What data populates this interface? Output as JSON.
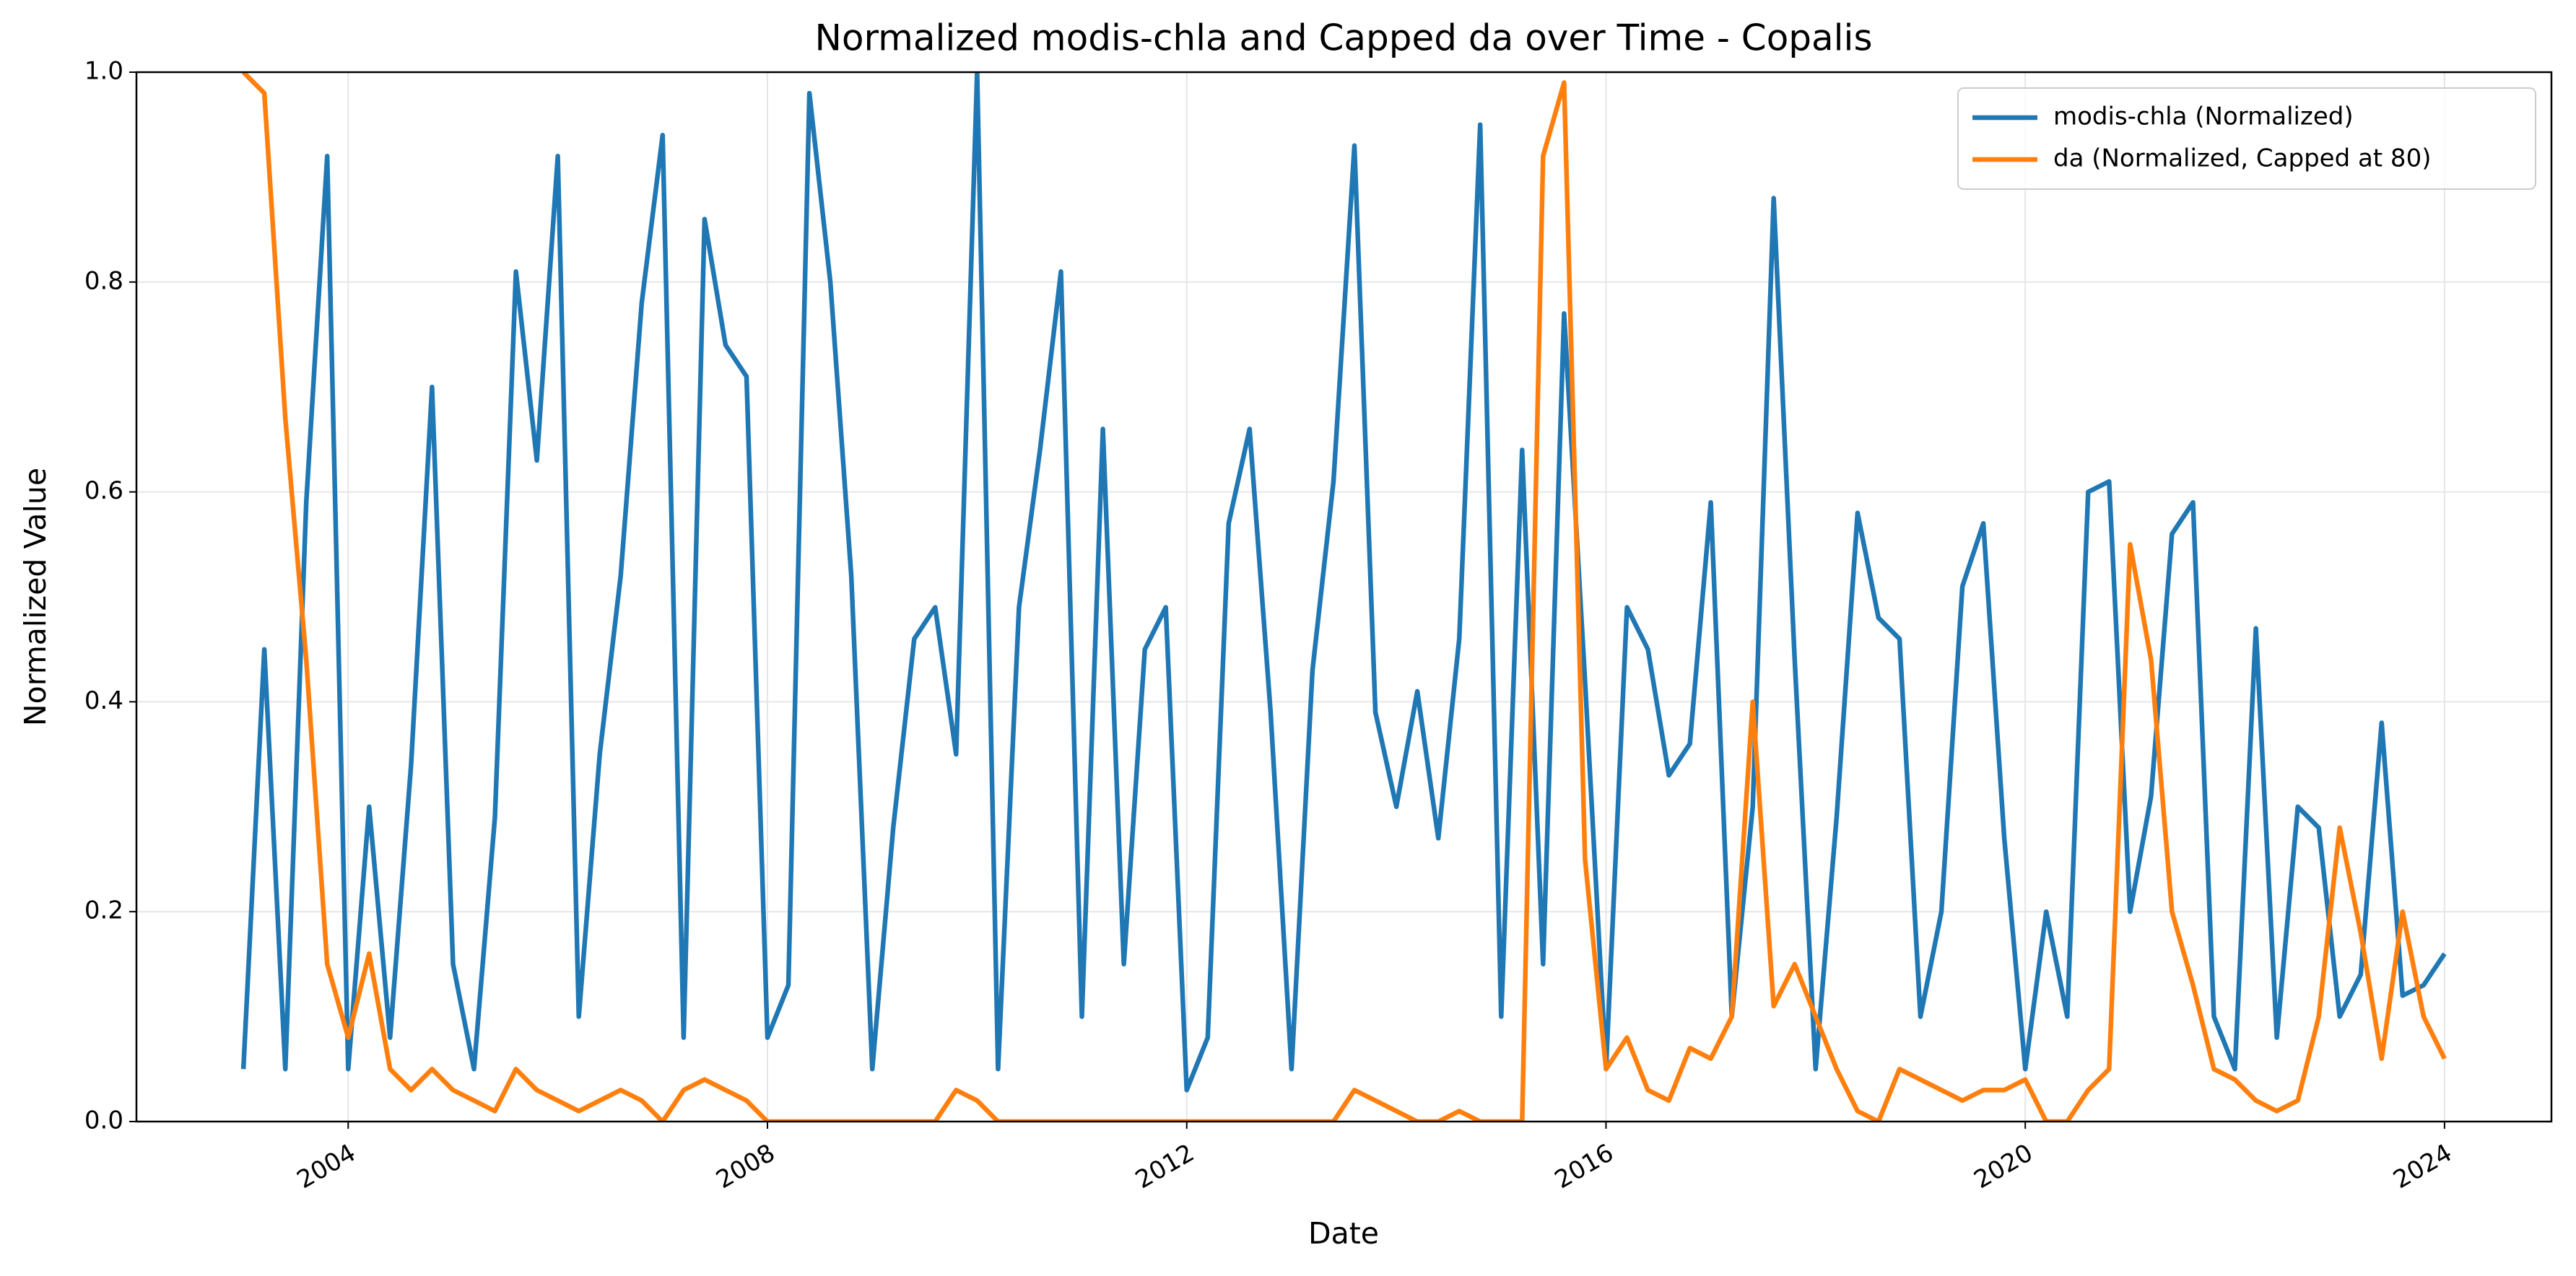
{
  "chart_data": {
    "type": "line",
    "title": "Normalized modis-chla and Capped da over Time - Copalis",
    "xlabel": "Date",
    "ylabel": "Normalized Value",
    "grid": true,
    "legend": "upper right",
    "x": [
      2003.0,
      2003.2,
      2003.4,
      2003.6,
      2003.8,
      2004.0,
      2004.2,
      2004.4,
      2004.6,
      2004.8,
      2005.0,
      2005.2,
      2005.4,
      2005.6,
      2005.8,
      2006.0,
      2006.2,
      2006.4,
      2006.6,
      2006.8,
      2007.0,
      2007.2,
      2007.4,
      2007.6,
      2007.8,
      2008.0,
      2008.2,
      2008.4,
      2008.6,
      2008.8,
      2009.0,
      2009.2,
      2009.4,
      2009.6,
      2009.8,
      2010.0,
      2010.2,
      2010.4,
      2010.6,
      2010.8,
      2011.0,
      2011.2,
      2011.4,
      2011.6,
      2011.8,
      2012.0,
      2012.2,
      2012.4,
      2012.6,
      2012.8,
      2013.0,
      2013.2,
      2013.4,
      2013.6,
      2013.8,
      2014.0,
      2014.2,
      2014.4,
      2014.6,
      2014.8,
      2015.0,
      2015.2,
      2015.4,
      2015.6,
      2015.8,
      2016.0,
      2016.2,
      2016.4,
      2016.6,
      2016.8,
      2017.0,
      2017.2,
      2017.4,
      2017.6,
      2017.8,
      2018.0,
      2018.2,
      2018.4,
      2018.6,
      2018.8,
      2019.0,
      2019.2,
      2019.4,
      2019.6,
      2019.8,
      2020.0,
      2020.2,
      2020.4,
      2020.6,
      2020.8,
      2021.0,
      2021.2,
      2021.4,
      2021.6,
      2021.8,
      2022.0,
      2022.2,
      2022.4,
      2022.6,
      2022.8,
      2023.0,
      2023.2,
      2023.4,
      2023.6,
      2023.8,
      2024.0
    ],
    "series": [
      {
        "name": "modis-chla (Normalized)",
        "color": "#1f77b4",
        "values": [
          0.05,
          0.45,
          0.05,
          0.59,
          0.92,
          0.05,
          0.3,
          0.08,
          0.34,
          0.7,
          0.15,
          0.05,
          0.29,
          0.81,
          0.63,
          0.92,
          0.1,
          0.35,
          0.52,
          0.78,
          0.94,
          0.08,
          0.86,
          0.74,
          0.71,
          0.08,
          0.13,
          0.98,
          0.8,
          0.52,
          0.05,
          0.28,
          0.46,
          0.49,
          0.35,
          1.0,
          0.05,
          0.49,
          0.64,
          0.81,
          0.1,
          0.66,
          0.15,
          0.45,
          0.49,
          0.03,
          0.08,
          0.57,
          0.66,
          0.39,
          0.05,
          0.43,
          0.61,
          0.93,
          0.39,
          0.3,
          0.41,
          0.27,
          0.46,
          0.95,
          0.1,
          0.64,
          0.15,
          0.77,
          0.42,
          0.05,
          0.49,
          0.45,
          0.33,
          0.36,
          0.59,
          0.1,
          0.3,
          0.88,
          0.44,
          0.05,
          0.29,
          0.58,
          0.48,
          0.46,
          0.1,
          0.2,
          0.51,
          0.57,
          0.27,
          0.05,
          0.2,
          0.1,
          0.6,
          0.61,
          0.2,
          0.31,
          0.56,
          0.59,
          0.1,
          0.05,
          0.47,
          0.08,
          0.3,
          0.28,
          0.1,
          0.14,
          0.38,
          0.12,
          0.13,
          0.16
        ]
      },
      {
        "name": "da (Normalized, Capped at 80)",
        "color": "#ff7f0e",
        "values": [
          1.0,
          0.98,
          0.67,
          0.44,
          0.15,
          0.08,
          0.16,
          0.05,
          0.03,
          0.05,
          0.03,
          0.02,
          0.01,
          0.05,
          0.03,
          0.02,
          0.01,
          0.02,
          0.03,
          0.02,
          0.0,
          0.03,
          0.04,
          0.03,
          0.02,
          0.0,
          0.0,
          0.0,
          0.0,
          0.0,
          0.0,
          0.0,
          0.0,
          0.0,
          0.03,
          0.02,
          0.0,
          0.0,
          0.0,
          0.0,
          0.0,
          0.0,
          0.0,
          0.0,
          0.0,
          0.0,
          0.0,
          0.0,
          0.0,
          0.0,
          0.0,
          0.0,
          0.0,
          0.03,
          0.02,
          0.01,
          0.0,
          0.0,
          0.01,
          0.0,
          0.0,
          0.0,
          0.92,
          0.99,
          0.25,
          0.05,
          0.08,
          0.03,
          0.02,
          0.07,
          0.06,
          0.1,
          0.4,
          0.11,
          0.15,
          0.1,
          0.05,
          0.01,
          0.0,
          0.05,
          0.04,
          0.03,
          0.02,
          0.03,
          0.03,
          0.04,
          0.0,
          0.0,
          0.03,
          0.05,
          0.55,
          0.44,
          0.2,
          0.13,
          0.05,
          0.04,
          0.02,
          0.01,
          0.02,
          0.1,
          0.28,
          0.18,
          0.06,
          0.2,
          0.1,
          0.06
        ]
      }
    ],
    "xlim": [
      2001.98,
      2025.02
    ],
    "xticks": [
      2004,
      2008,
      2012,
      2016,
      2020,
      2024
    ],
    "ylim": [
      0,
      1
    ],
    "yticks": [
      {
        "value": 0,
        "label": "0.0"
      },
      0.2,
      0.4,
      0.6,
      0.8,
      {
        "value": 1,
        "label": "1.0"
      }
    ]
  }
}
